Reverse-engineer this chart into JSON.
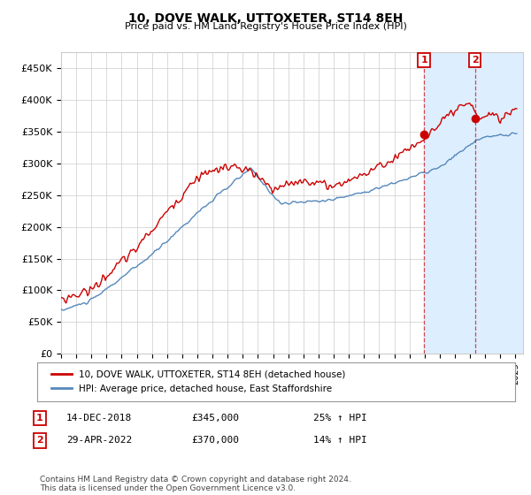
{
  "title": "10, DOVE WALK, UTTOXETER, ST14 8EH",
  "subtitle": "Price paid vs. HM Land Registry's House Price Index (HPI)",
  "ylabel_ticks": [
    "£0",
    "£50K",
    "£100K",
    "£150K",
    "£200K",
    "£250K",
    "£300K",
    "£350K",
    "£400K",
    "£450K"
  ],
  "ytick_values": [
    0,
    50000,
    100000,
    150000,
    200000,
    250000,
    300000,
    350000,
    400000,
    450000
  ],
  "ylim": [
    0,
    475000
  ],
  "xlim_start": 1995.0,
  "xlim_end": 2025.5,
  "line1_color": "#cc0000",
  "line2_color": "#5588bb",
  "shade_color": "#ddeeff",
  "marker1_x": 2018.96,
  "marker1_y": 345000,
  "marker2_x": 2022.33,
  "marker2_y": 370000,
  "legend_line1": "10, DOVE WALK, UTTOXETER, ST14 8EH (detached house)",
  "legend_line2": "HPI: Average price, detached house, East Staffordshire",
  "annotation1_date": "14-DEC-2018",
  "annotation1_price": "£345,000",
  "annotation1_hpi": "25% ↑ HPI",
  "annotation2_date": "29-APR-2022",
  "annotation2_price": "£370,000",
  "annotation2_hpi": "14% ↑ HPI",
  "footer": "Contains HM Land Registry data © Crown copyright and database right 2024.\nThis data is licensed under the Open Government Licence v3.0.",
  "background_color": "#ffffff",
  "grid_color": "#cccccc"
}
